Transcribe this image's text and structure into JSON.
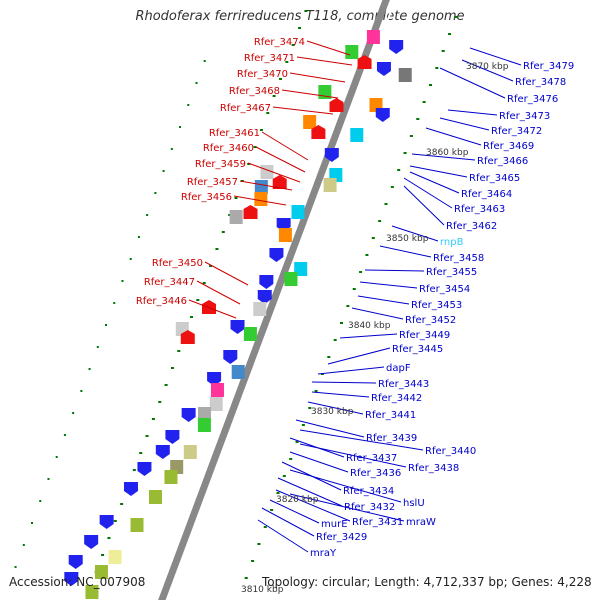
{
  "title": "Rhodoferax ferrireducens T118, complete genome",
  "accession": "Accession: NC_007908",
  "topology": "Topology: circular; Length: 4,712,337 bp; Genes: 4,228",
  "colors": {
    "left_label": "#cc0000",
    "right_label": "#0000cc",
    "rna_label": "#33ccff",
    "backbone": "#888888",
    "ruler_tick": "#007700"
  },
  "position_labels": [
    "3870 kbp",
    "3860 kbp",
    "3850 kbp",
    "3840 kbp",
    "3830 kbp",
    "3820 kbp",
    "3810 kbp"
  ],
  "left_gene_labels": [
    "Rfer_3474",
    "Rfer_3471",
    "Rfer_3470",
    "Rfer_3468",
    "Rfer_3467",
    "Rfer_3461",
    "Rfer_3460",
    "Rfer_3459",
    "Rfer_3457",
    "Rfer_3456",
    "Rfer_3450",
    "Rfer_3447",
    "Rfer_3446"
  ],
  "right_gene_labels": [
    "Rfer_3479",
    "Rfer_3478",
    "Rfer_3476",
    "Rfer_3473",
    "Rfer_3472",
    "Rfer_3469",
    "Rfer_3466",
    "Rfer_3465",
    "Rfer_3464",
    "Rfer_3463",
    "Rfer_3462",
    "rnpB",
    "Rfer_3458",
    "Rfer_3455",
    "Rfer_3454",
    "Rfer_3453",
    "Rfer_3452",
    "Rfer_3449",
    "Rfer_3445",
    "dapF",
    "Rfer_3443",
    "Rfer_3442",
    "Rfer_3441",
    "Rfer_3439",
    "Rfer_3440",
    "Rfer_3437",
    "Rfer_3438",
    "Rfer_3436",
    "Rfer_3434",
    "hslU",
    "Rfer_3432",
    "Rfer_3431",
    "mraW",
    "murE",
    "Rfer_3429",
    "mraY"
  ]
}
